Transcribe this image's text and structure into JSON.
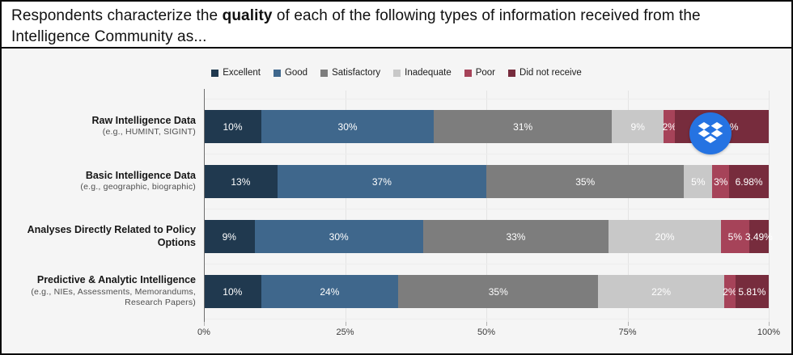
{
  "header": {
    "title_prefix": "Respondents characterize the ",
    "title_bold": "quality",
    "title_suffix": " of each of the following types of information received from the Intelligence Community as..."
  },
  "chart_data": {
    "type": "bar",
    "subtype": "horizontal-stacked-100pct",
    "title": "Respondents characterize the quality of each of the following types of information received from the Intelligence Community as...",
    "legend_position": "top",
    "grid": true,
    "categories": [
      {
        "label": "Raw Intelligence Data",
        "sublabel": "(e.g., HUMINT, SIGINT)"
      },
      {
        "label": "Basic Intelligence Data",
        "sublabel": "(e.g., geographic, biographic)"
      },
      {
        "label": "Analyses Directly Related to Policy Options",
        "sublabel": ""
      },
      {
        "label": "Predictive & Analytic Intelligence",
        "sublabel": "(e.g., NIEs, Assessments, Memorandums, Research Papers)"
      }
    ],
    "series": [
      {
        "name": "Excellent",
        "color": "#20394f",
        "values": [
          10,
          13,
          9,
          10
        ],
        "labels": [
          "10%",
          "13%",
          "9%",
          "10%"
        ]
      },
      {
        "name": "Good",
        "color": "#3f678c",
        "values": [
          30,
          37,
          30,
          24
        ],
        "labels": [
          "30%",
          "37%",
          "30%",
          "24%"
        ]
      },
      {
        "name": "Satisfactory",
        "color": "#7d7d7d",
        "values": [
          31,
          35,
          33,
          35
        ],
        "labels": [
          "31%",
          "35%",
          "33%",
          "35%"
        ]
      },
      {
        "name": "Inadequate",
        "color": "#c8c8c8",
        "values": [
          9,
          5,
          20,
          22
        ],
        "labels": [
          "9%",
          "5%",
          "20%",
          "22%"
        ]
      },
      {
        "name": "Poor",
        "color": "#a64359",
        "values": [
          2,
          3,
          5,
          2
        ],
        "labels": [
          "2%",
          "3%",
          "5%",
          "2%"
        ]
      },
      {
        "name": "Did not receive",
        "color": "#772c3d",
        "values": [
          16.28,
          6.98,
          3.49,
          5.81
        ],
        "labels": [
          "16.28%",
          "6.98%",
          "3.49%",
          "5.81%"
        ]
      }
    ],
    "x_axis": {
      "min": 0,
      "max": 100,
      "ticks": [
        "0%",
        "25%",
        "50%",
        "75%",
        "100%"
      ]
    }
  },
  "overlay": {
    "dropbox_badge_color": "#2573e2"
  },
  "colors": {
    "chart_background": "#f5f5f5",
    "axis_line": "#6f6f6f",
    "grid_line": "#e4e4e4",
    "bar_label_text": "#ffffff"
  }
}
